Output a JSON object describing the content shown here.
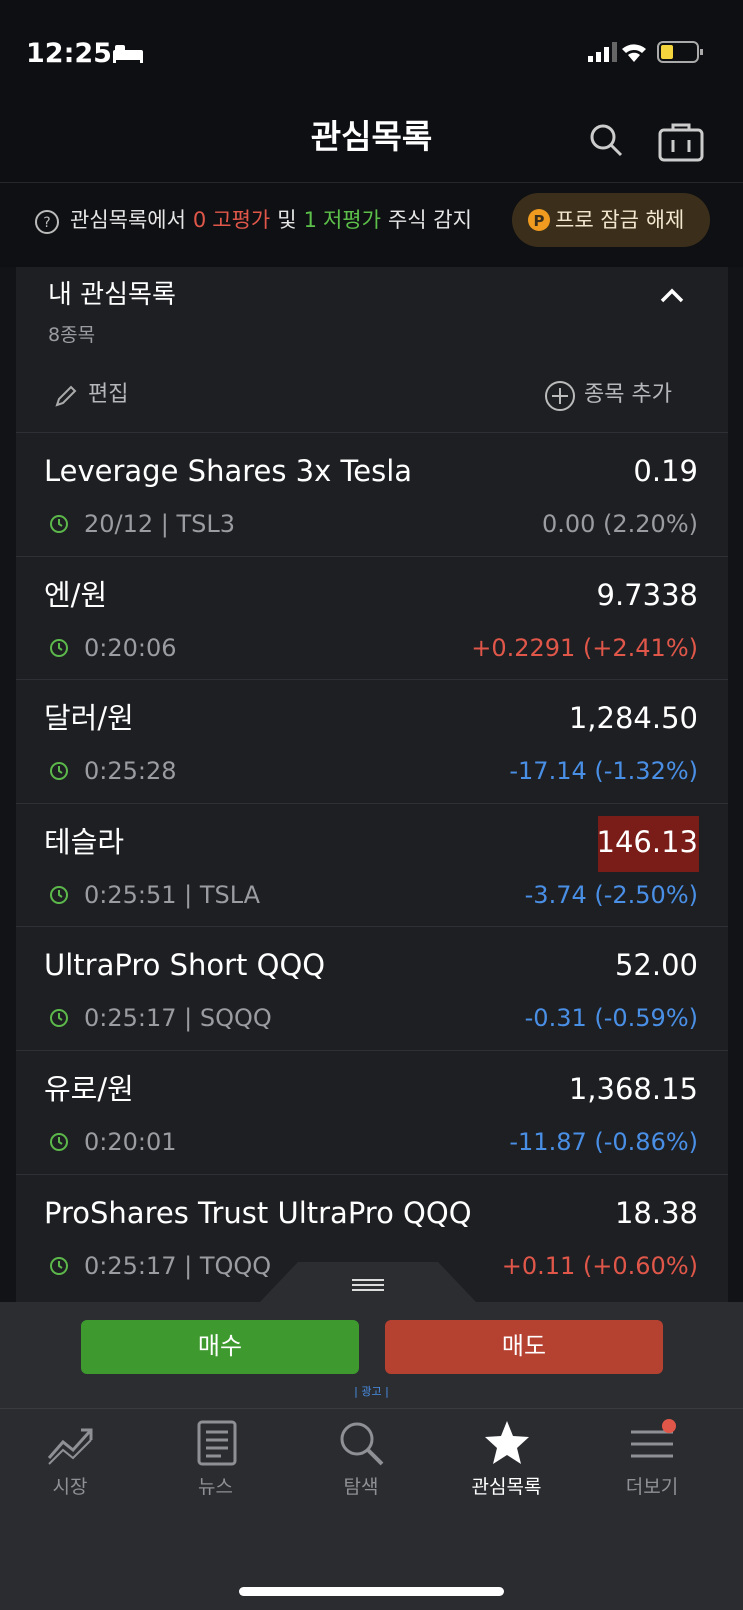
{
  "status_bar": {
    "time": "12:25"
  },
  "header": {
    "title": "관심목록"
  },
  "banner": {
    "parts": [
      "관심목록에서",
      "0",
      "고평가",
      "및",
      "1",
      "저평가",
      "주식 감지"
    ],
    "button": "프로 잠금 해제"
  },
  "watchlist": {
    "title": "내 관심목록",
    "count": "8종목",
    "edit": "편집",
    "add": "종목 추가",
    "items": [
      {
        "name": "Leverage Shares 3x Tesla",
        "price": "0.19",
        "meta": "20/12 | TSL3",
        "change": "0.00 (2.20%)",
        "change_color": "#9a9ca1",
        "highlight": false
      },
      {
        "name": "엔/원",
        "price": "9.7338",
        "meta": "0:20:06",
        "change": "+0.2291 (+2.41%)",
        "change_color": "#e0574a",
        "highlight": false
      },
      {
        "name": "달러/원",
        "price": "1,284.50",
        "meta": "0:25:28",
        "change": "-17.14 (-1.32%)",
        "change_color": "#4a8fe6",
        "highlight": false
      },
      {
        "name": "테슬라",
        "price": "146.13",
        "meta": "0:25:51 | TSLA",
        "change": "-3.74 (-2.50%)",
        "change_color": "#4a8fe6",
        "highlight": true
      },
      {
        "name": "UltraPro Short QQQ",
        "price": "52.00",
        "meta": "0:25:17 | SQQQ",
        "change": "-0.31 (-0.59%)",
        "change_color": "#4a8fe6",
        "highlight": false
      },
      {
        "name": "유로/원",
        "price": "1,368.15",
        "meta": "0:20:01",
        "change": "-11.87 (-0.86%)",
        "change_color": "#4a8fe6",
        "highlight": false
      },
      {
        "name": "ProShares Trust UltraPro QQQ",
        "price": "18.38",
        "meta": "0:25:17 | TQQQ",
        "change": "+0.11 (+0.60%)",
        "change_color": "#e0574a",
        "highlight": false
      }
    ]
  },
  "trade": {
    "buy": "매수",
    "sell": "매도",
    "ad": "| 광고 |"
  },
  "tabs": [
    {
      "label": "시장",
      "active": false
    },
    {
      "label": "뉴스",
      "active": false
    },
    {
      "label": "탐색",
      "active": false
    },
    {
      "label": "관심목록",
      "active": true
    },
    {
      "label": "더보기",
      "active": false
    }
  ]
}
